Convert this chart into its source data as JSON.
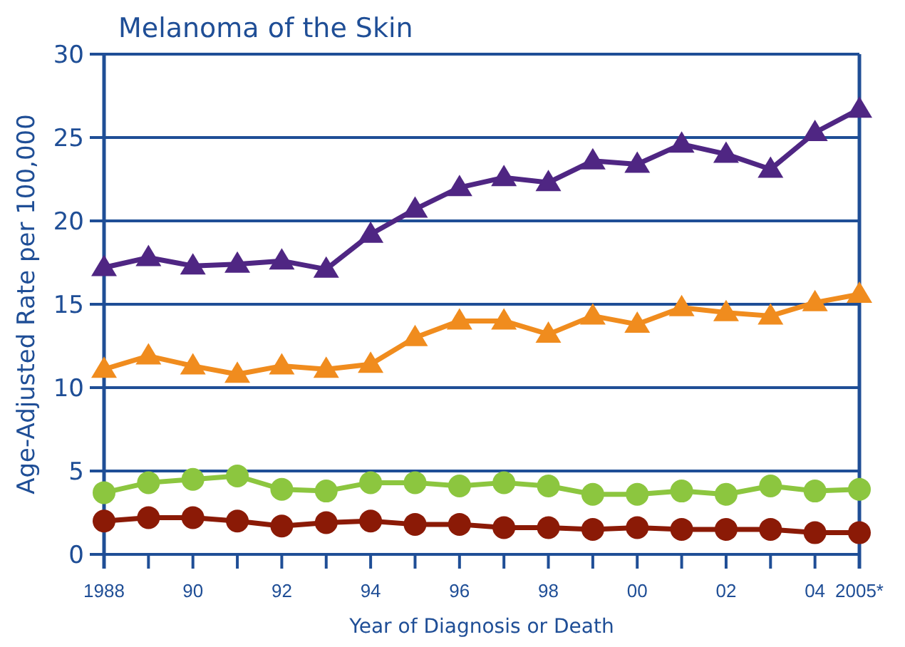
{
  "chart_data": {
    "type": "line",
    "title": "Melanoma of the Skin",
    "xlabel": "Year of Diagnosis or Death",
    "ylabel": "Age-Adjusted Rate per 100,000",
    "x": [
      1988,
      1989,
      1990,
      1991,
      1992,
      1993,
      1994,
      1995,
      1996,
      1997,
      1998,
      1999,
      2000,
      2001,
      2002,
      2003,
      2004,
      2005
    ],
    "xlim": [
      1988,
      2005
    ],
    "xticks": [
      {
        "value": 1988,
        "label": "1988"
      },
      {
        "value": 1989,
        "label": null
      },
      {
        "value": 1990,
        "label": "90"
      },
      {
        "value": 1991,
        "label": null
      },
      {
        "value": 1992,
        "label": "92"
      },
      {
        "value": 1993,
        "label": null
      },
      {
        "value": 1994,
        "label": "94"
      },
      {
        "value": 1995,
        "label": null
      },
      {
        "value": 1996,
        "label": "96"
      },
      {
        "value": 1997,
        "label": null
      },
      {
        "value": 1998,
        "label": "98"
      },
      {
        "value": 1999,
        "label": null
      },
      {
        "value": 2000,
        "label": "00"
      },
      {
        "value": 2001,
        "label": null
      },
      {
        "value": 2002,
        "label": "02"
      },
      {
        "value": 2003,
        "label": null
      },
      {
        "value": 2004,
        "label": "04"
      },
      {
        "value": 2005,
        "label": "2005*"
      }
    ],
    "ylim": [
      0,
      30
    ],
    "yticks": [
      0,
      5,
      10,
      15,
      20,
      25,
      30
    ],
    "grid": "y",
    "series": [
      {
        "color": "#4f2683",
        "marker": "triangle",
        "values": [
          17.2,
          17.8,
          17.3,
          17.4,
          17.6,
          17.1,
          19.2,
          20.7,
          22.0,
          22.6,
          22.3,
          23.6,
          23.4,
          24.6,
          24.0,
          23.1,
          25.3,
          26.7
        ]
      },
      {
        "color": "#f08c1e",
        "marker": "triangle",
        "values": [
          11.1,
          11.9,
          11.3,
          10.8,
          11.3,
          11.1,
          11.4,
          13.0,
          14.0,
          14.0,
          13.2,
          14.3,
          13.8,
          14.8,
          14.5,
          14.3,
          15.1,
          15.6
        ]
      },
      {
        "color": "#8cc63f",
        "marker": "circle",
        "values": [
          3.7,
          4.3,
          4.5,
          4.7,
          3.9,
          3.8,
          4.3,
          4.3,
          4.1,
          4.3,
          4.1,
          3.6,
          3.6,
          3.8,
          3.6,
          4.1,
          3.8,
          3.9
        ]
      },
      {
        "color": "#8b1a06",
        "marker": "circle",
        "values": [
          2.0,
          2.2,
          2.2,
          2.0,
          1.7,
          1.9,
          2.0,
          1.8,
          1.8,
          1.6,
          1.6,
          1.5,
          1.6,
          1.5,
          1.5,
          1.5,
          1.3,
          1.3
        ]
      }
    ]
  }
}
